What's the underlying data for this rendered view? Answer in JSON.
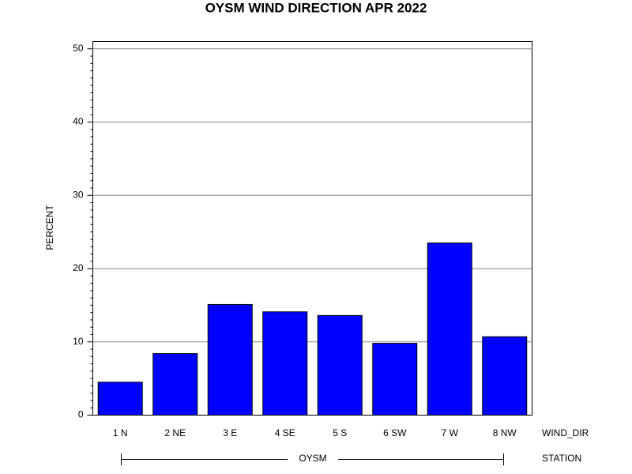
{
  "chart_data": {
    "type": "bar",
    "title": "OYSM WIND DIRECTION APR 2022",
    "y_label": "PERCENT",
    "x_label": "WIND_DIR",
    "group_label": "STATION",
    "group": "OYSM",
    "categories": [
      "1 N",
      "2 NE",
      "3 E",
      "4 SE",
      "5 S",
      "6 SW",
      "7 W",
      "8 NW"
    ],
    "values": [
      4.5,
      8.4,
      15.1,
      14.1,
      13.6,
      9.8,
      23.5,
      10.7
    ],
    "color": "#0000ff",
    "ylim": [
      0,
      51
    ],
    "yticks": [
      0,
      10,
      20,
      30,
      40,
      50
    ],
    "grid": true
  }
}
